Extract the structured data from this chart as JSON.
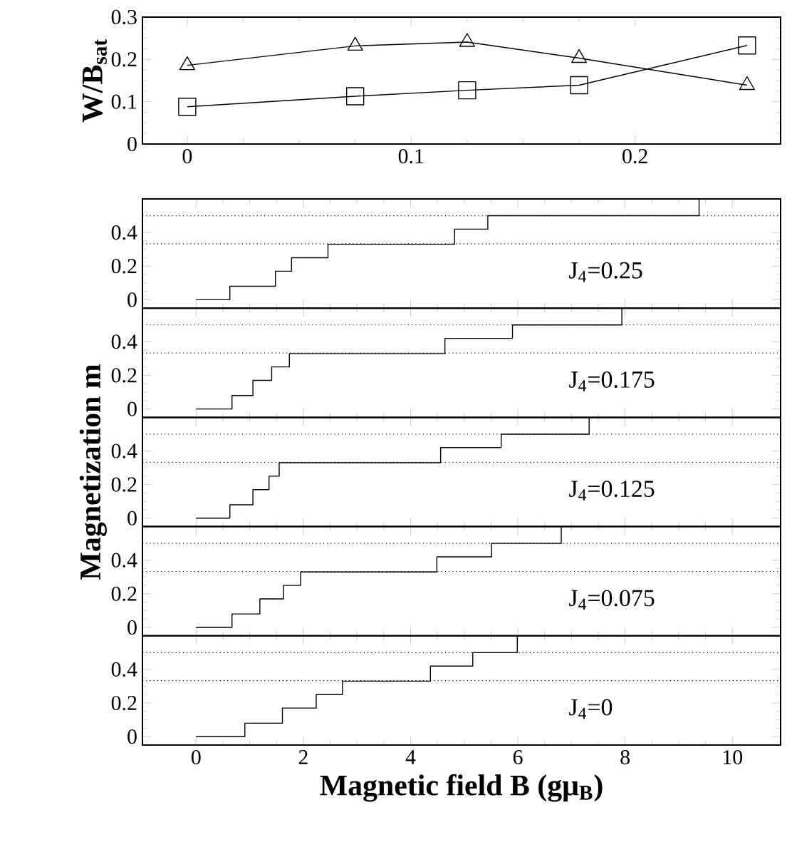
{
  "chart_data": [
    {
      "type": "line",
      "ylabel": "W/B$_{sat}$",
      "x": [
        0,
        0.075,
        0.125,
        0.175,
        0.25
      ],
      "xlim": [
        -0.02,
        0.265
      ],
      "xticks": [
        0,
        0.1,
        0.2
      ],
      "ylim": [
        0,
        0.3
      ],
      "yticks": [
        0,
        0.1,
        0.2,
        0.3
      ],
      "series": [
        {
          "color": "#000000",
          "marker": "triangle",
          "values": [
            0.186,
            0.232,
            0.241,
            0.203,
            0.139
          ]
        },
        {
          "color": "#000000",
          "marker": "square",
          "values": [
            0.088,
            0.113,
            0.127,
            0.139,
            0.233
          ]
        }
      ]
    },
    {
      "type": "step",
      "annotations": [
        "J$_{4}$=0.25"
      ],
      "x": [
        0,
        0.63,
        1.48,
        1.78,
        2.46,
        4.82,
        5.44,
        9.38
      ],
      "values": [
        0,
        0.08,
        0.17,
        0.25,
        0.33,
        0.42,
        0.5,
        0.6
      ],
      "color": "#000000",
      "xlim": [
        -1,
        10.9
      ],
      "xticks": [
        0,
        2,
        4,
        6,
        8,
        10
      ],
      "ylim": [
        -0.05,
        0.6
      ],
      "yticks": [
        0,
        0.2,
        0.4
      ],
      "tick_labels": "y",
      "ref_lines": [
        {
          "axis": "y",
          "value": 0.333,
          "line_style": "dotted"
        },
        {
          "axis": "y",
          "value": 0.5,
          "line_style": "dotted"
        }
      ]
    },
    {
      "type": "step",
      "annotations": [
        "J$_{4}$=0.175"
      ],
      "x": [
        0,
        0.67,
        1.06,
        1.41,
        1.74,
        4.64,
        5.9,
        7.94
      ],
      "values": [
        0,
        0.08,
        0.17,
        0.25,
        0.33,
        0.42,
        0.5,
        0.6
      ],
      "color": "#000000",
      "xlim": [
        -1,
        10.9
      ],
      "xticks": [
        0,
        2,
        4,
        6,
        8,
        10
      ],
      "ylim": [
        -0.05,
        0.6
      ],
      "yticks": [
        0,
        0.2,
        0.4
      ],
      "tick_labels": "y",
      "ref_lines": [
        {
          "axis": "y",
          "value": 0.333,
          "line_style": "dotted"
        },
        {
          "axis": "y",
          "value": 0.5,
          "line_style": "dotted"
        }
      ]
    },
    {
      "type": "step",
      "ylabel": "Magnetization m",
      "annotations": [
        "J$_{4}$=0.125"
      ],
      "x": [
        0,
        0.63,
        1.06,
        1.36,
        1.55,
        4.56,
        5.69,
        7.33
      ],
      "values": [
        0,
        0.08,
        0.17,
        0.25,
        0.33,
        0.42,
        0.5,
        0.6
      ],
      "color": "#000000",
      "xlim": [
        -1,
        10.9
      ],
      "xticks": [
        0,
        2,
        4,
        6,
        8,
        10
      ],
      "ylim": [
        -0.05,
        0.6
      ],
      "yticks": [
        0,
        0.2,
        0.4
      ],
      "tick_labels": "y",
      "ref_lines": [
        {
          "axis": "y",
          "value": 0.333,
          "line_style": "dotted"
        },
        {
          "axis": "y",
          "value": 0.5,
          "line_style": "dotted"
        }
      ]
    },
    {
      "type": "step",
      "annotations": [
        "J$_{4}$=0.075"
      ],
      "x": [
        0,
        0.67,
        1.19,
        1.63,
        1.95,
        4.49,
        5.51,
        6.81
      ],
      "values": [
        0,
        0.08,
        0.17,
        0.25,
        0.33,
        0.42,
        0.5,
        0.6
      ],
      "color": "#000000",
      "xlim": [
        -1,
        10.9
      ],
      "xticks": [
        0,
        2,
        4,
        6,
        8,
        10
      ],
      "ylim": [
        -0.05,
        0.6
      ],
      "yticks": [
        0,
        0.2,
        0.4
      ],
      "tick_labels": "y",
      "ref_lines": [
        {
          "axis": "y",
          "value": 0.333,
          "line_style": "dotted"
        },
        {
          "axis": "y",
          "value": 0.5,
          "line_style": "dotted"
        }
      ]
    },
    {
      "type": "step",
      "xlabel": "Magnetic field B (gμ$_{B}$)",
      "annotations": [
        "J$_{4}$=0"
      ],
      "x": [
        0,
        0.91,
        1.61,
        2.24,
        2.73,
        4.37,
        5.16,
        5.99
      ],
      "values": [
        0,
        0.08,
        0.17,
        0.25,
        0.33,
        0.42,
        0.5,
        0.6
      ],
      "color": "#000000",
      "xlim": [
        -1,
        10.9
      ],
      "xticks": [
        0,
        2,
        4,
        6,
        8,
        10
      ],
      "ylim": [
        -0.05,
        0.6
      ],
      "yticks": [
        0,
        0.2,
        0.4
      ],
      "ref_lines": [
        {
          "axis": "y",
          "value": 0.333,
          "line_style": "dotted"
        },
        {
          "axis": "y",
          "value": 0.5,
          "line_style": "dotted"
        }
      ]
    }
  ]
}
